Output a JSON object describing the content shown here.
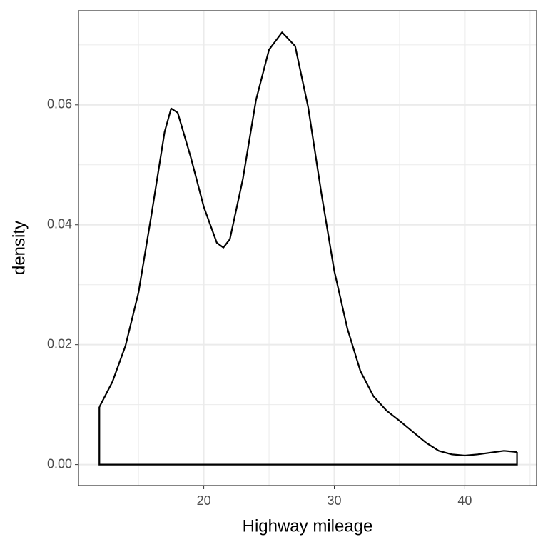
{
  "chart_data": {
    "type": "density",
    "x_label": "Highway mileage",
    "y_label": "density",
    "x": [
      12,
      13,
      14,
      15,
      16,
      17,
      17.5,
      18,
      19,
      20,
      21,
      21.5,
      22,
      23,
      24,
      25,
      26,
      27,
      28,
      29,
      30,
      31,
      32,
      33,
      34,
      35,
      36,
      37,
      38,
      39,
      40,
      41,
      42,
      43,
      44
    ],
    "values": [
      0.0096,
      0.0138,
      0.0198,
      0.0287,
      0.0418,
      0.0555,
      0.0594,
      0.0587,
      0.0513,
      0.043,
      0.037,
      0.0362,
      0.0376,
      0.0477,
      0.0608,
      0.0692,
      0.0721,
      0.0698,
      0.0596,
      0.0454,
      0.0323,
      0.0227,
      0.0156,
      0.0114,
      0.009,
      0.0073,
      0.0055,
      0.0037,
      0.0023,
      0.0017,
      0.0015,
      0.0017,
      0.002,
      0.0023,
      0.0021
    ],
    "color": "#000000",
    "xlim": [
      10.4,
      45.5
    ],
    "ylim": [
      -0.0035,
      0.0757
    ],
    "xticks": [
      20,
      30,
      40
    ],
    "yticks": [
      {
        "value": 0,
        "label": "0.00"
      },
      {
        "value": 0.02,
        "label": "0.02"
      },
      {
        "value": 0.04,
        "label": "0.04"
      },
      {
        "value": 0.06,
        "label": "0.06"
      }
    ],
    "x_minor_ticks": [
      15,
      25,
      35,
      45
    ],
    "y_minor_ticks": [
      0.01,
      0.03,
      0.05,
      0.07
    ],
    "grid": true
  }
}
